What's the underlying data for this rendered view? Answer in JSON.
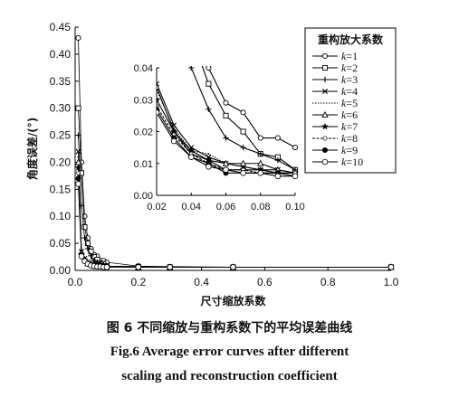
{
  "chart_data": {
    "type": "line",
    "title": "",
    "xlabel": "尺寸缩放系数",
    "ylabel": "角度误差/(°)",
    "xlim": [
      0.0,
      1.0
    ],
    "ylim": [
      0.0,
      0.45
    ],
    "x_ticks": [
      "0.0",
      "0.2",
      "0.4",
      "0.6",
      "0.8",
      "1.0"
    ],
    "y_ticks": [
      "0.00",
      "0.05",
      "0.10",
      "0.15",
      "0.20",
      "0.25",
      "0.30",
      "0.35",
      "0.40",
      "0.45"
    ],
    "legend_title": "重构放大系数",
    "legend_position": "top-right",
    "grid": false,
    "series": [
      {
        "name": "k=1",
        "marker": "circle-open",
        "x": [
          0.01,
          0.02,
          0.03,
          0.04,
          0.05,
          0.06,
          0.07,
          0.08,
          0.09,
          0.1,
          0.2,
          0.3,
          0.5,
          1.0
        ],
        "y": [
          0.43,
          0.2,
          0.1,
          0.06,
          0.04,
          0.029,
          0.026,
          0.018,
          0.018,
          0.015,
          0.008,
          0.007,
          0.006,
          0.006
        ]
      },
      {
        "name": "k=2",
        "marker": "square-open",
        "x": [
          0.01,
          0.02,
          0.03,
          0.04,
          0.05,
          0.06,
          0.07,
          0.08,
          0.09,
          0.1,
          0.2,
          0.3,
          0.5,
          1.0
        ],
        "y": [
          0.3,
          0.18,
          0.08,
          0.05,
          0.035,
          0.025,
          0.02,
          0.013,
          0.012,
          0.008,
          0.007,
          0.006,
          0.006,
          0.006
        ]
      },
      {
        "name": "k=3",
        "marker": "plus",
        "x": [
          0.01,
          0.02,
          0.03,
          0.04,
          0.05,
          0.06,
          0.07,
          0.08,
          0.09,
          0.1,
          0.2,
          0.3,
          0.5,
          1.0
        ],
        "y": [
          0.25,
          0.12,
          0.06,
          0.04,
          0.027,
          0.018,
          0.015,
          0.013,
          0.011,
          0.008,
          0.007,
          0.006,
          0.006,
          0.006
        ]
      },
      {
        "name": "k=4",
        "marker": "cross",
        "x": [
          0.01,
          0.02,
          0.03,
          0.04,
          0.05,
          0.06,
          0.07,
          0.08,
          0.09,
          0.1,
          0.2,
          0.3,
          0.5,
          1.0
        ],
        "y": [
          0.22,
          0.035,
          0.022,
          0.015,
          0.012,
          0.01,
          0.009,
          0.008,
          0.008,
          0.007,
          0.006,
          0.006,
          0.006,
          0.006
        ]
      },
      {
        "name": "k=5",
        "marker": "none-dotted",
        "x": [
          0.01,
          0.02,
          0.03,
          0.04,
          0.05,
          0.06,
          0.07,
          0.08,
          0.09,
          0.1,
          0.2,
          0.3,
          0.5,
          1.0
        ],
        "y": [
          0.21,
          0.033,
          0.021,
          0.014,
          0.013,
          0.01,
          0.009,
          0.008,
          0.007,
          0.007,
          0.006,
          0.006,
          0.006,
          0.006
        ]
      },
      {
        "name": "k=6",
        "marker": "triangle-open",
        "x": [
          0.01,
          0.02,
          0.03,
          0.04,
          0.05,
          0.06,
          0.07,
          0.08,
          0.09,
          0.1,
          0.2,
          0.3,
          0.5,
          1.0
        ],
        "y": [
          0.2,
          0.034,
          0.02,
          0.013,
          0.011,
          0.01,
          0.01,
          0.01,
          0.008,
          0.007,
          0.006,
          0.006,
          0.006,
          0.006
        ]
      },
      {
        "name": "k=7",
        "marker": "star",
        "x": [
          0.01,
          0.02,
          0.03,
          0.04,
          0.05,
          0.06,
          0.07,
          0.08,
          0.09,
          0.1,
          0.2,
          0.3,
          0.5,
          1.0
        ],
        "y": [
          0.19,
          0.03,
          0.02,
          0.014,
          0.011,
          0.008,
          0.008,
          0.008,
          0.007,
          0.007,
          0.006,
          0.006,
          0.006,
          0.006
        ]
      },
      {
        "name": "k=8",
        "marker": "circle-open-small",
        "x": [
          0.01,
          0.02,
          0.03,
          0.04,
          0.05,
          0.06,
          0.07,
          0.08,
          0.09,
          0.1,
          0.2,
          0.3,
          0.5,
          1.0
        ],
        "y": [
          0.18,
          0.028,
          0.019,
          0.013,
          0.01,
          0.008,
          0.008,
          0.007,
          0.007,
          0.007,
          0.006,
          0.006,
          0.006,
          0.006
        ]
      },
      {
        "name": "k=9",
        "marker": "circle-filled",
        "x": [
          0.01,
          0.02,
          0.03,
          0.04,
          0.05,
          0.06,
          0.07,
          0.08,
          0.09,
          0.1,
          0.2,
          0.3,
          0.5,
          1.0
        ],
        "y": [
          0.17,
          0.027,
          0.018,
          0.012,
          0.01,
          0.007,
          0.007,
          0.007,
          0.007,
          0.006,
          0.006,
          0.006,
          0.006,
          0.006
        ]
      },
      {
        "name": "k=10",
        "marker": "circle-open-large",
        "x": [
          0.01,
          0.02,
          0.03,
          0.04,
          0.05,
          0.06,
          0.07,
          0.08,
          0.09,
          0.1,
          0.2,
          0.3,
          0.5,
          1.0
        ],
        "y": [
          0.16,
          0.026,
          0.017,
          0.012,
          0.009,
          0.008,
          0.007,
          0.007,
          0.006,
          0.006,
          0.006,
          0.006,
          0.006,
          0.006
        ]
      }
    ],
    "inset": {
      "xlim": [
        0.02,
        0.1
      ],
      "ylim": [
        0.0,
        0.04
      ],
      "x_ticks": [
        "0.02",
        "0.04",
        "0.06",
        "0.08",
        "0.10"
      ],
      "y_ticks": [
        "0.00",
        "0.01",
        "0.02",
        "0.03",
        "0.04"
      ]
    }
  },
  "captions": {
    "cn": "图 6   不同缩放与重构系数下的平均误差曲线",
    "en_line1": "Fig.6    Average error curves after different",
    "en_line2": "scaling and reconstruction coefficient"
  }
}
